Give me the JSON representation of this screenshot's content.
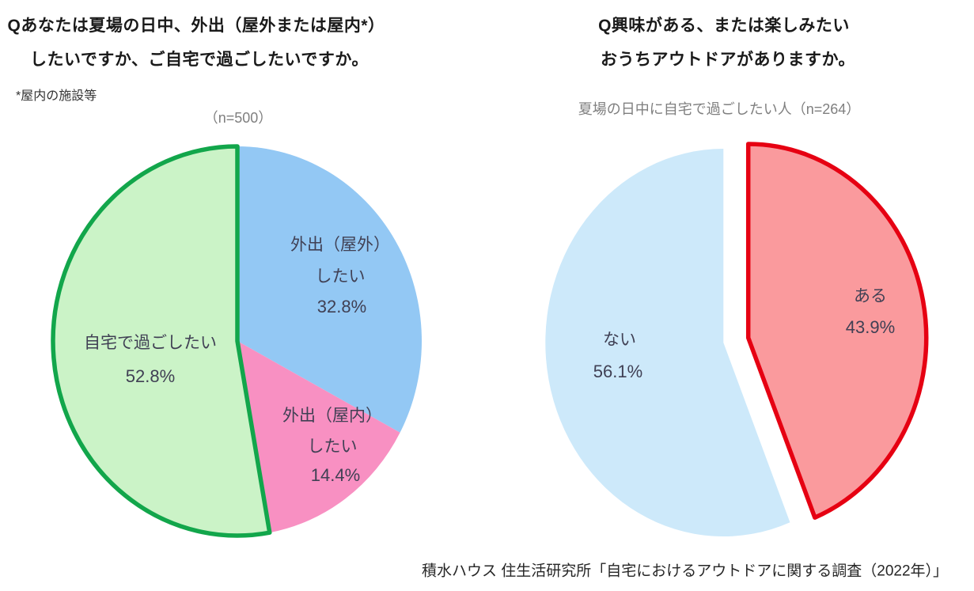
{
  "page": {
    "background": "#ffffff",
    "source_credit": "積水ハウス 住生活研究所「自宅におけるアウトドアに関する調査（2022年）」"
  },
  "colors": {
    "title_text": "#1a1a1a",
    "subtitle_text": "#7f7f7f",
    "label_text": "#404054",
    "footer_text": "#262626",
    "left_highlight_stroke": "#12A64B",
    "right_highlight_stroke": "#E60012"
  },
  "chart_data": [
    {
      "type": "pie",
      "title_lines": [
        "Qあなたは夏場の日中、外出（屋外または屋内*）",
        "したいですか、ご自宅で過ごしたいですか。"
      ],
      "footnote": "*屋内の施設等",
      "subtitle": "（n=500）",
      "sample_size": 500,
      "legend_position": "none",
      "start_angle_deg": 0,
      "direction": "clockwise",
      "slices": [
        {
          "name": "outing-outdoor",
          "label_lines": [
            "外出（屋外）",
            "したい"
          ],
          "pct_label": "32.8%",
          "value": 32.8,
          "color": "#93C8F4"
        },
        {
          "name": "outing-indoor",
          "label_lines": [
            "外出（屋内）",
            "したい"
          ],
          "pct_label": "14.4%",
          "value": 14.4,
          "color": "#F890C2"
        },
        {
          "name": "stay-home",
          "label_lines": [
            "自宅で過ごしたい"
          ],
          "pct_label": "52.8%",
          "value": 52.8,
          "color": "#CBF3C7",
          "stroke": "#12A64B",
          "stroke_width": 5.5
        }
      ]
    },
    {
      "type": "pie",
      "title_lines": [
        "Q興味がある、または楽しみたい",
        "おうちアウトドアがありますか。"
      ],
      "subtitle": "夏場の日中に自宅で過ごしたい人（n=264）",
      "sample_size": 264,
      "legend_position": "none",
      "start_angle_deg": 0,
      "direction": "clockwise",
      "slices": [
        {
          "name": "yes",
          "label_lines": [
            "ある"
          ],
          "pct_label": "43.9%",
          "value": 43.9,
          "color": "#FA9A9D",
          "stroke": "#E60012",
          "stroke_width": 5.5
        },
        {
          "name": "no",
          "label_lines": [
            "ない"
          ],
          "pct_label": "56.1%",
          "value": 56.1,
          "color": "#CDE9FA"
        }
      ]
    }
  ]
}
